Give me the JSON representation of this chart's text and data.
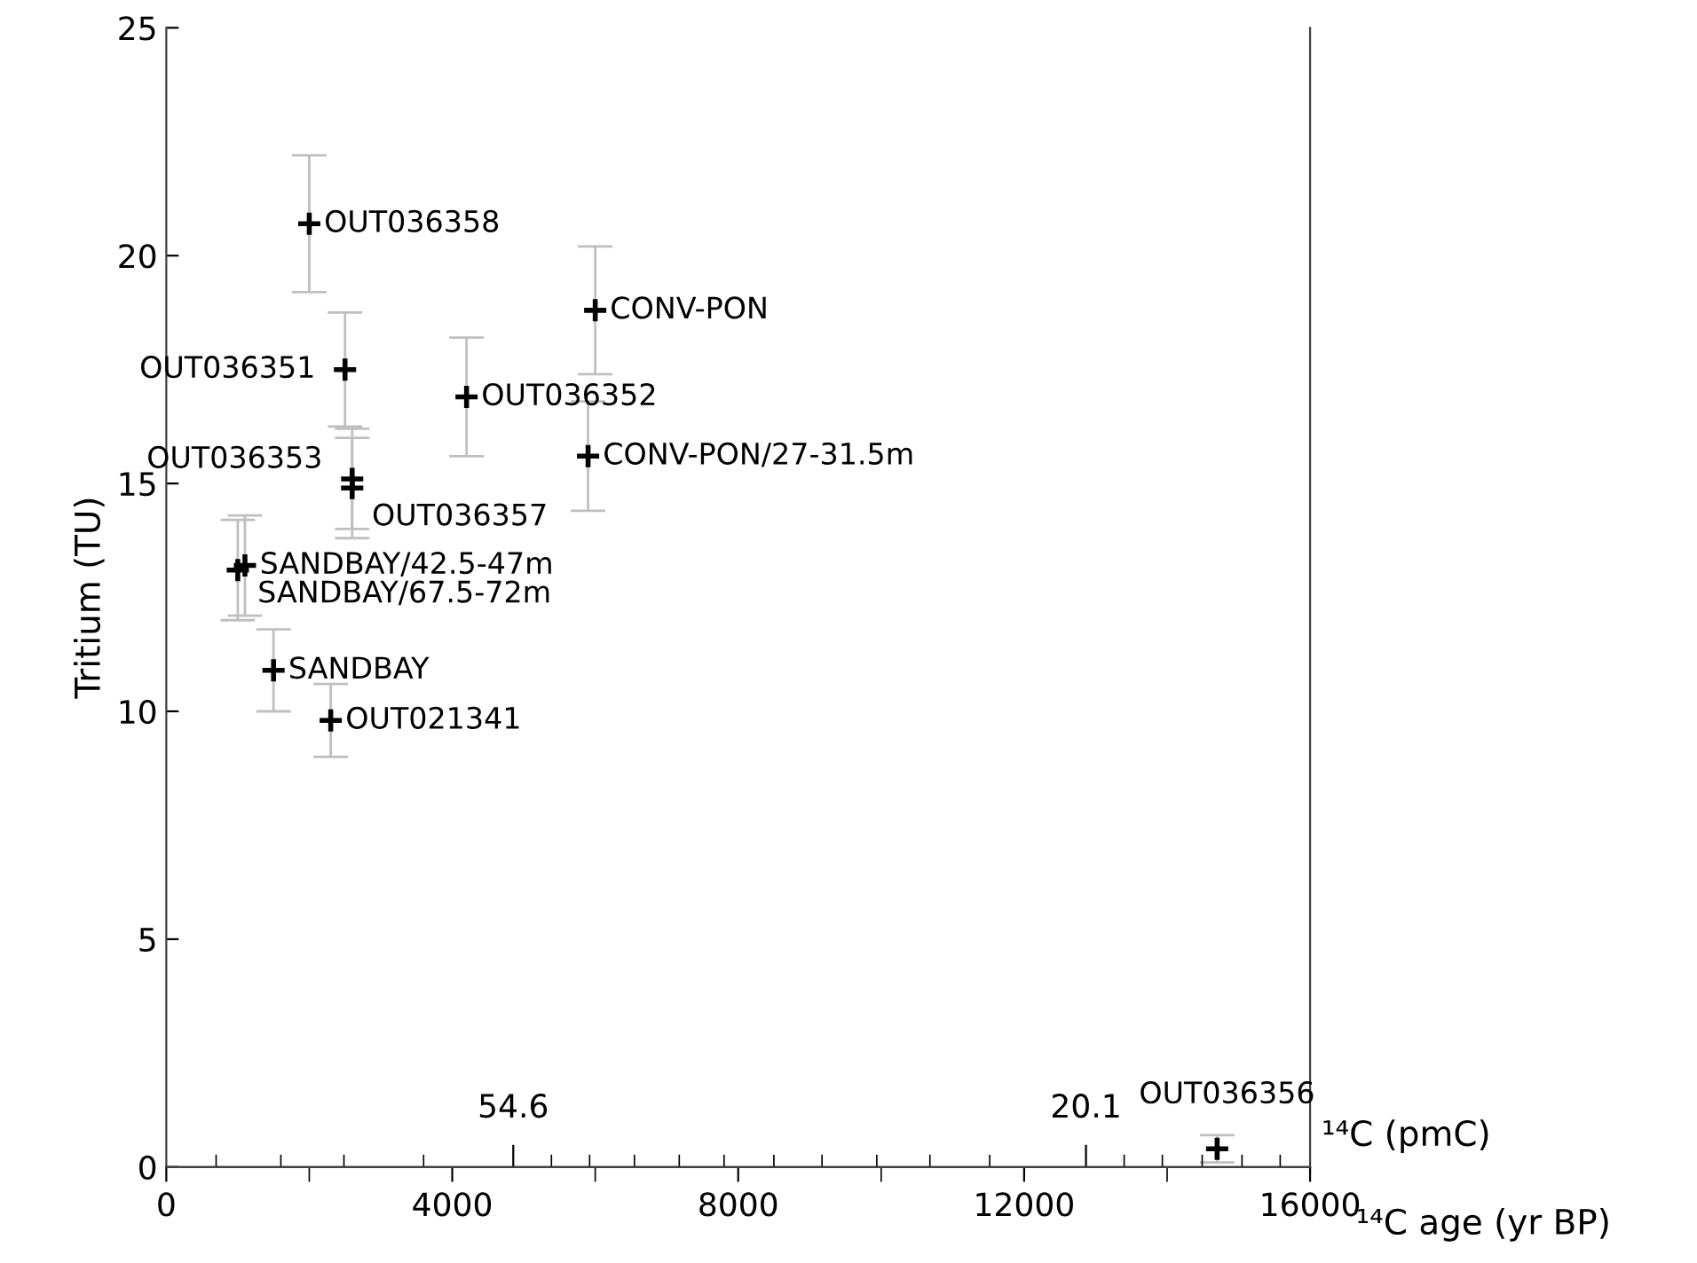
{
  "chart_data": {
    "type": "scatter",
    "ylabel": "Tritium (TU)",
    "xlabel": "¹⁴C age (yr BP)",
    "x2label": "¹⁴C (pmC)",
    "xlim": [
      0,
      16000
    ],
    "ylim": [
      0,
      25
    ],
    "xticks": [
      0,
      {
        "value": 2000,
        "label": null
      },
      4000,
      {
        "value": 6000,
        "label": null
      },
      8000,
      {
        "value": 10000,
        "label": null
      },
      12000,
      {
        "value": 14000,
        "label": null
      },
      16000
    ],
    "yticks": [
      0,
      5,
      10,
      15,
      20,
      25
    ],
    "x2lim": [
      75.5,
      6.6
    ],
    "x2ticks": [
      {
        "value": 72.5,
        "label": null
      },
      {
        "value": 68.6,
        "label": null
      },
      {
        "value": 64.8,
        "label": null
      },
      {
        "value": 60.0,
        "label": null
      },
      54.6,
      {
        "value": 52.3,
        "label": null
      },
      {
        "value": 50.0,
        "label": null
      },
      {
        "value": 47.3,
        "label": null
      },
      {
        "value": 44.6,
        "label": null
      },
      {
        "value": 41.9,
        "label": null
      },
      {
        "value": 38.9,
        "label": null
      },
      {
        "value": 36.0,
        "label": null
      },
      {
        "value": 32.7,
        "label": null
      },
      {
        "value": 29.5,
        "label": null
      },
      {
        "value": 25.9,
        "label": null
      },
      20.1,
      {
        "value": 17.8,
        "label": null
      },
      {
        "value": 15.5,
        "label": null
      },
      {
        "value": 13.1,
        "label": null
      },
      {
        "value": 10.7,
        "label": null
      },
      {
        "value": 8.4,
        "label": null
      }
    ],
    "marker": "cross",
    "grid": false,
    "legend": false,
    "series": [
      {
        "name": "OUT036358",
        "color": "#000000",
        "x": [
          2000
        ],
        "values": [
          20.7
        ],
        "errors": [
          1.5
        ]
      },
      {
        "name": "CONV-PON",
        "color": "#000000",
        "x": [
          6000
        ],
        "values": [
          18.8
        ],
        "errors": [
          1.4
        ]
      },
      {
        "name": "OUT036351",
        "color": "#000000",
        "x": [
          2500
        ],
        "values": [
          17.5
        ],
        "errors": [
          1.25
        ]
      },
      {
        "name": "OUT036352",
        "color": "#000000",
        "x": [
          4200
        ],
        "values": [
          16.9
        ],
        "errors": [
          1.3
        ]
      },
      {
        "name": "CONV-PON/27-31.5m",
        "color": "#000000",
        "x": [
          5900
        ],
        "values": [
          15.6
        ],
        "errors": [
          1.2
        ]
      },
      {
        "name": "OUT036353",
        "color": "#000000",
        "x": [
          2600
        ],
        "values": [
          15.1
        ],
        "errors": [
          1.1
        ]
      },
      {
        "name": "OUT036357",
        "color": "#000000",
        "x": [
          2600
        ],
        "values": [
          14.9
        ],
        "errors": [
          1.1
        ]
      },
      {
        "name": "SANDBAY/42.5-47m",
        "color": "#000000",
        "x": [
          1100
        ],
        "values": [
          13.2
        ],
        "errors": [
          1.1
        ]
      },
      {
        "name": "SANDBAY/67.5-72m",
        "color": "#000000",
        "x": [
          1000
        ],
        "values": [
          13.1
        ],
        "errors": [
          1.1
        ]
      },
      {
        "name": "SANDBAY",
        "color": "#000000",
        "x": [
          1500
        ],
        "values": [
          10.9
        ],
        "errors": [
          0.9
        ]
      },
      {
        "name": "OUT021341",
        "color": "#000000",
        "x": [
          2300
        ],
        "values": [
          9.8
        ],
        "errors": [
          0.8
        ]
      },
      {
        "name": "OUT036356",
        "color": "#000000",
        "x": [
          14700
        ],
        "values": [
          0.4
        ],
        "errors": [
          0.3
        ]
      }
    ]
  }
}
